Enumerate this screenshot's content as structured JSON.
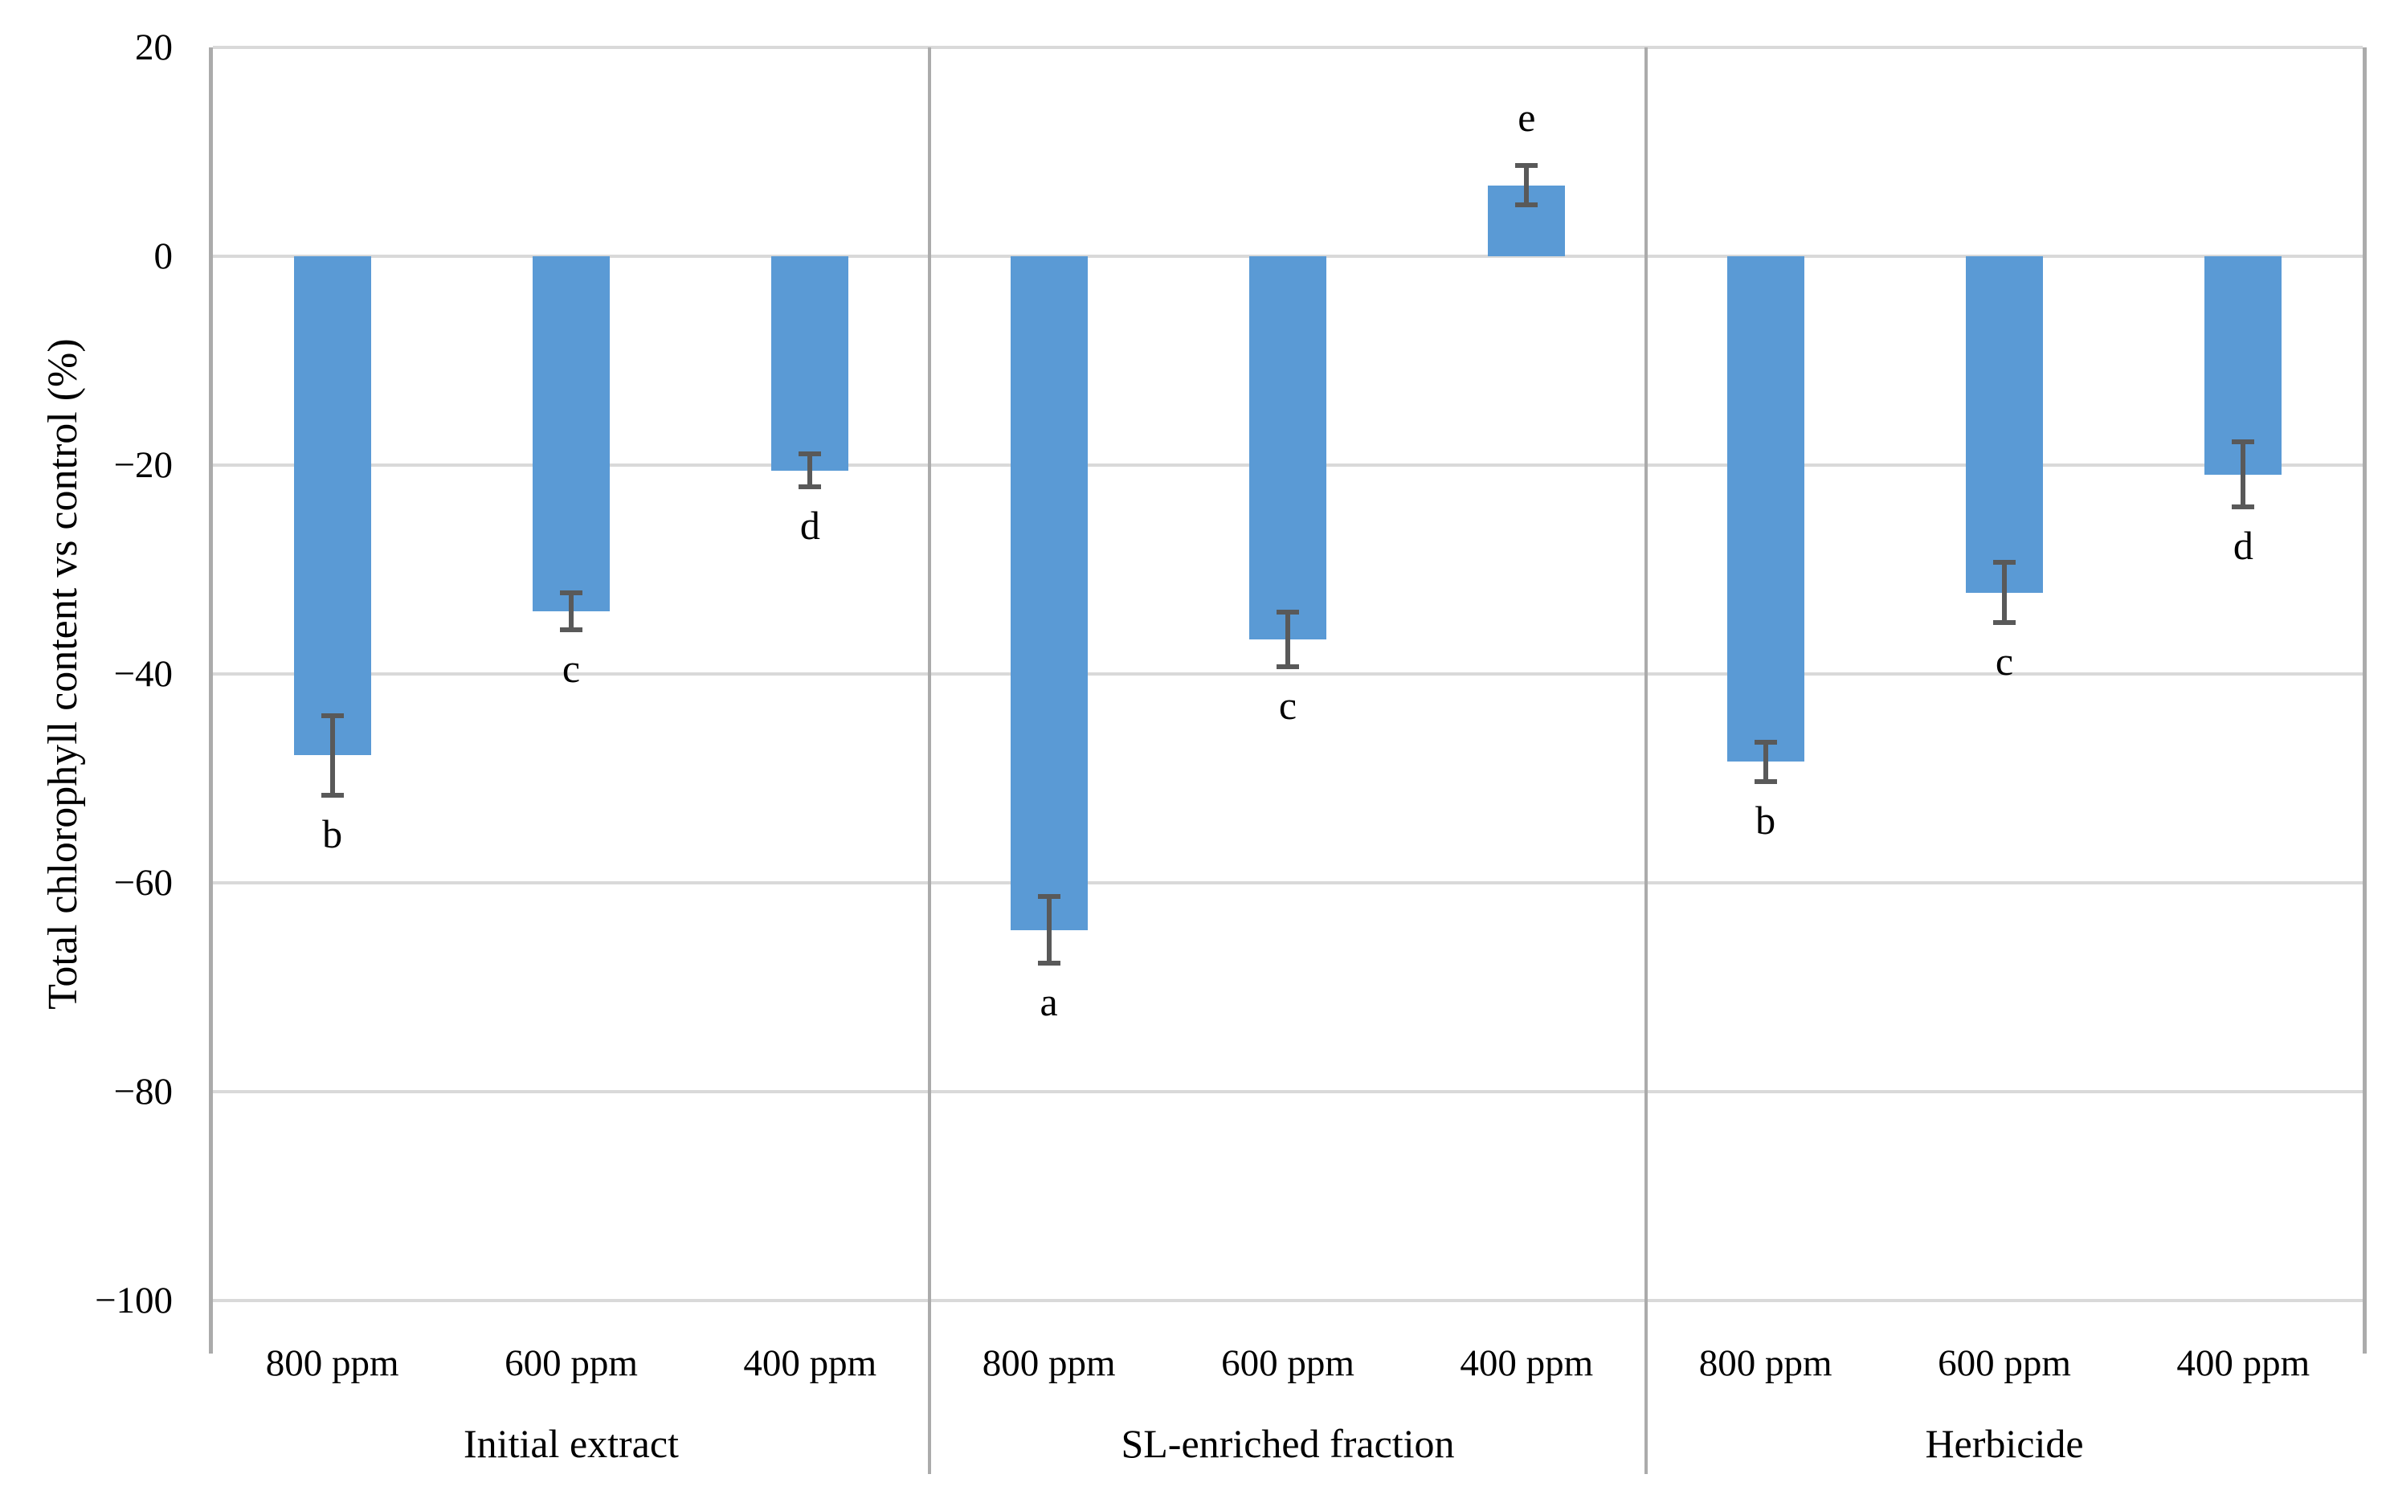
{
  "chart_data": {
    "type": "bar",
    "title": "",
    "ylabel": "Total chlorophyll content vs control (%)",
    "xlabel": "",
    "ylim": [
      -100,
      20
    ],
    "yticks": [
      20,
      0,
      -20,
      -40,
      -60,
      -80,
      -100
    ],
    "grid": "horizontal",
    "legend_position": "none",
    "bar_unit": "% vs control",
    "groups": [
      {
        "label": "Initial extract",
        "bars": [
          {
            "category": "800 ppm",
            "value": -47.8,
            "error": 3.8,
            "letter": "b"
          },
          {
            "category": "600 ppm",
            "value": -34.0,
            "error": 1.8,
            "letter": "c"
          },
          {
            "category": "400 ppm",
            "value": -20.5,
            "error": 1.6,
            "letter": "d"
          }
        ]
      },
      {
        "label": "SL-enriched fraction",
        "bars": [
          {
            "category": "800 ppm",
            "value": -64.5,
            "error": 3.2,
            "letter": "a"
          },
          {
            "category": "600 ppm",
            "value": -36.7,
            "error": 2.6,
            "letter": "c"
          },
          {
            "category": "400 ppm",
            "value": 6.8,
            "error": 1.9,
            "letter": "e"
          }
        ]
      },
      {
        "label": "Herbicide",
        "bars": [
          {
            "category": "800 ppm",
            "value": -48.4,
            "error": 1.9,
            "letter": "b"
          },
          {
            "category": "600 ppm",
            "value": -32.2,
            "error": 2.9,
            "letter": "c"
          },
          {
            "category": "400 ppm",
            "value": -20.9,
            "error": 3.1,
            "letter": "d"
          }
        ]
      }
    ],
    "colors": {
      "bar": "#5A9AD5",
      "error_bar": "#595959",
      "gridline": "#D9D9D9",
      "axis_line": "#ABABAB",
      "panel_separator": "#ABABAB",
      "text": "#000000",
      "background": "#FFFFFF"
    }
  }
}
